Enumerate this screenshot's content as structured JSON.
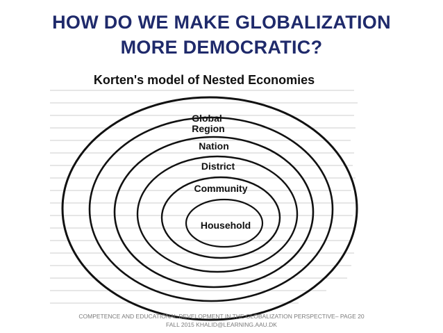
{
  "slide": {
    "title_line1": "HOW DO WE MAKE GLOBALIZATION",
    "title_line2": "MORE DEMOCRATIC?"
  },
  "diagram": {
    "heading": "Korten's model of Nested Economies",
    "rings": [
      "Global",
      "Region",
      "Nation",
      "District",
      "Community",
      "Household"
    ]
  },
  "footer": {
    "line1": "COMPETENCE AND EDUCATIONAL DEVELOPMENT IN THE GLOBALIZATION PERSPECTIVE– PAGE 20",
    "line2": "FALL 2015  KHALID@LEARNING.AAU.DK"
  },
  "colors": {
    "title": "#1f2a6b",
    "ink": "#111111",
    "footer": "#7a7a7a"
  }
}
